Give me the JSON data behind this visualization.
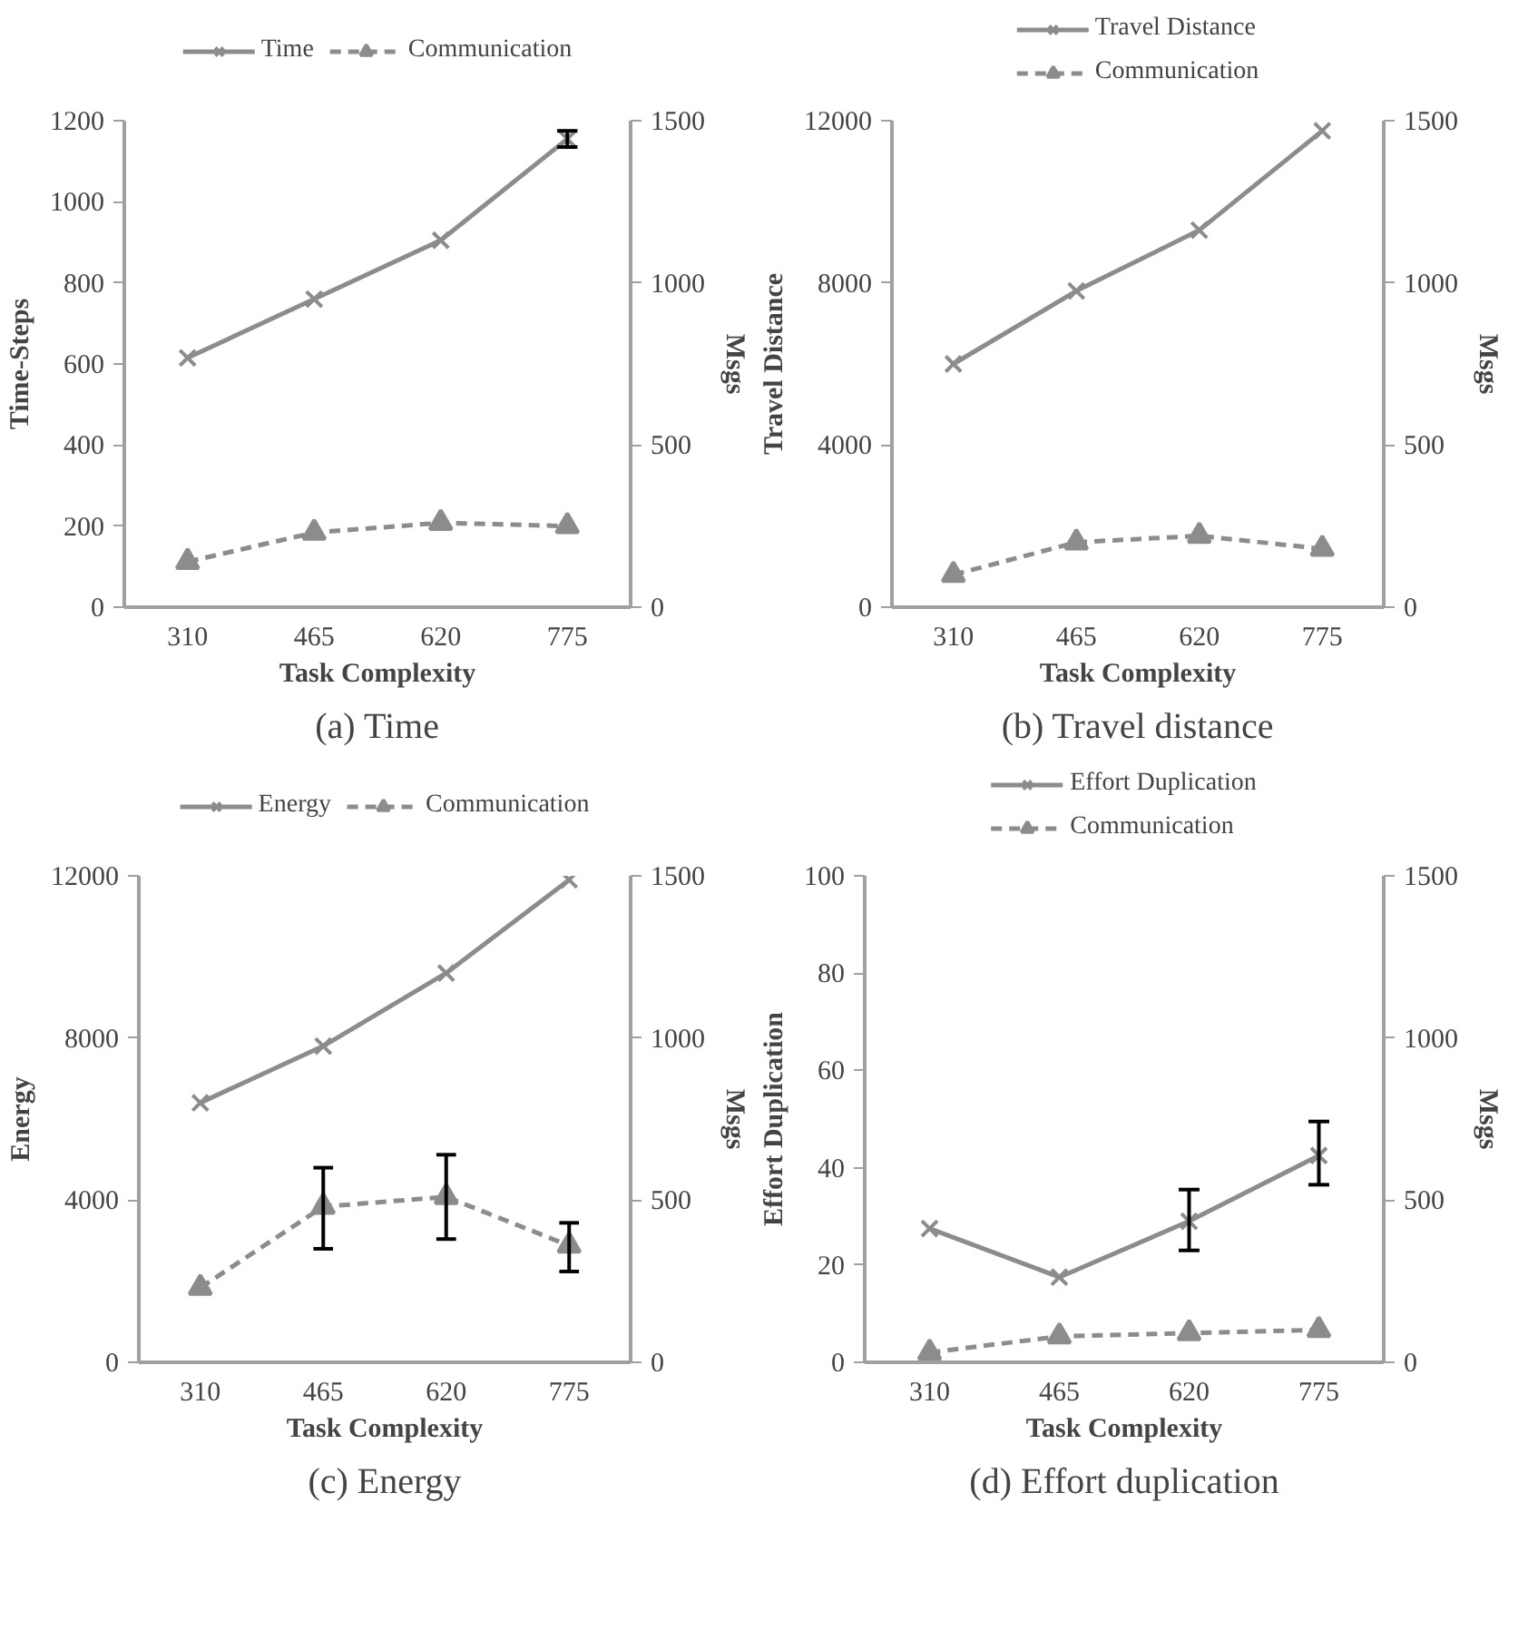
{
  "chart_data": [
    {
      "type": "line",
      "title": "(a) Time",
      "xlabel": "Task Complexity",
      "ylabel": "Time-Steps",
      "y2label": "Msgs",
      "categories": [
        "310",
        "465",
        "620",
        "775"
      ],
      "ylim": [
        0,
        1200
      ],
      "yticks": [
        0,
        200,
        400,
        600,
        800,
        1000,
        1200
      ],
      "y2lim": [
        0,
        1500
      ],
      "y2ticks": [
        0,
        500,
        1000,
        1500
      ],
      "grid": false,
      "legend": "top",
      "series": [
        {
          "name": "Time",
          "color": "#8c8c8c",
          "marker": "cross",
          "line_style": "solid",
          "values": [
            615,
            760,
            905,
            1155
          ],
          "errors": [
            null,
            null,
            null,
            [
              1135,
              1175
            ]
          ]
        },
        {
          "name": "Communication",
          "color": "#8c8c8c",
          "marker": "triangle",
          "line_style": "dashed",
          "axis": "y2",
          "values": [
            140,
            230,
            260,
            250
          ]
        }
      ]
    },
    {
      "type": "line",
      "title": "(b) Travel distance",
      "xlabel": "Task Complexity",
      "ylabel": "Travel Distance",
      "y2label": "Msgs",
      "categories": [
        "310",
        "465",
        "620",
        "775"
      ],
      "ylim": [
        0,
        12000
      ],
      "yticks": [
        0,
        4000,
        8000,
        12000
      ],
      "y2lim": [
        0,
        1500
      ],
      "y2ticks": [
        0,
        500,
        1000,
        1500
      ],
      "grid": false,
      "legend": "top",
      "series": [
        {
          "name": "Travel Distance",
          "color": "#8c8c8c",
          "marker": "cross",
          "line_style": "solid",
          "values": [
            6000,
            7800,
            9300,
            11750
          ]
        },
        {
          "name": "Communication",
          "color": "#8c8c8c",
          "marker": "triangle",
          "line_style": "dashed",
          "axis": "y2",
          "values": [
            100,
            200,
            220,
            180
          ]
        }
      ]
    },
    {
      "type": "line",
      "title": "(c) Energy",
      "xlabel": "Task Complexity",
      "ylabel": "Energy",
      "y2label": "Msgs",
      "categories": [
        "310",
        "465",
        "620",
        "775"
      ],
      "ylim": [
        0,
        12000
      ],
      "yticks": [
        0,
        4000,
        8000,
        12000
      ],
      "y2lim": [
        0,
        1500
      ],
      "y2ticks": [
        0,
        500,
        1000,
        1500
      ],
      "grid": false,
      "legend": "top",
      "series": [
        {
          "name": "Energy",
          "color": "#8c8c8c",
          "marker": "cross",
          "line_style": "solid",
          "values": [
            6400,
            7800,
            9600,
            11900
          ]
        },
        {
          "name": "Communication",
          "color": "#8c8c8c",
          "marker": "triangle",
          "line_style": "dashed",
          "axis": "y2",
          "values": [
            230,
            480,
            510,
            360
          ],
          "errors": [
            null,
            [
              350,
              600
            ],
            [
              380,
              640
            ],
            [
              280,
              430
            ]
          ]
        }
      ]
    },
    {
      "type": "line",
      "title": "(d) Effort duplication",
      "xlabel": "Task Complexity",
      "ylabel": "Effort Duplication",
      "y2label": "Msgs",
      "categories": [
        "310",
        "465",
        "620",
        "775"
      ],
      "ylim": [
        0,
        100
      ],
      "yticks": [
        0,
        20,
        40,
        60,
        80,
        100
      ],
      "y2lim": [
        0,
        1500
      ],
      "y2ticks": [
        0,
        500,
        1000,
        1500
      ],
      "grid": false,
      "legend": "top",
      "series": [
        {
          "name": "Effort Duplication",
          "color": "#8c8c8c",
          "marker": "cross",
          "line_style": "solid",
          "values": [
            27.5,
            17.5,
            29,
            42.5
          ],
          "errors": [
            null,
            null,
            [
              23,
              35.5
            ],
            [
              36.5,
              49.5
            ]
          ]
        },
        {
          "name": "Communication",
          "color": "#8c8c8c",
          "marker": "triangle",
          "line_style": "dashed",
          "axis": "y2",
          "values": [
            30,
            80,
            90,
            100
          ]
        }
      ]
    }
  ]
}
